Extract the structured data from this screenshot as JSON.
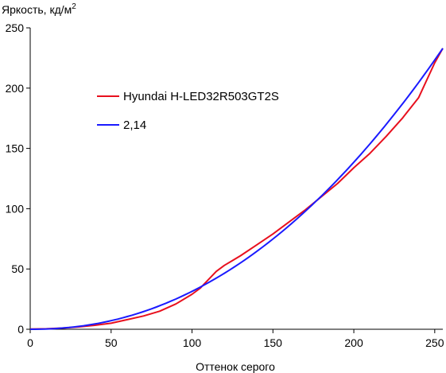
{
  "chart_data": {
    "type": "line",
    "ylabel": "Яркость, кд/м",
    "ylabel_sup": "2",
    "xlabel": "Оттенок серого",
    "xlim": [
      0,
      255
    ],
    "ylim": [
      0,
      250
    ],
    "xticks": [
      0,
      50,
      100,
      150,
      200,
      250
    ],
    "yticks": [
      0,
      50,
      100,
      150,
      200,
      250
    ],
    "grid": false,
    "legend_position": "upper-left-inside",
    "series": [
      {
        "name": "Hyundai H-LED32R503GT2S",
        "color": "#e8101e",
        "x": [
          0,
          10,
          20,
          30,
          40,
          50,
          60,
          70,
          80,
          90,
          100,
          105,
          110,
          115,
          120,
          125,
          130,
          140,
          150,
          160,
          170,
          180,
          190,
          200,
          210,
          220,
          230,
          240,
          250,
          255
        ],
        "y": [
          0.2,
          0.4,
          1.0,
          2.0,
          3.3,
          5.0,
          8.0,
          11.0,
          15.0,
          21.0,
          29.0,
          34.0,
          41.0,
          48.0,
          53.0,
          57.0,
          61.0,
          70.0,
          79.0,
          89.0,
          99.0,
          110.0,
          121.0,
          134.0,
          146.0,
          160.0,
          175.0,
          192.0,
          221.0,
          233.0
        ]
      },
      {
        "name": "2,14",
        "color": "#1a1aff",
        "x": [
          0,
          10,
          20,
          30,
          40,
          50,
          60,
          70,
          80,
          90,
          100,
          110,
          120,
          130,
          140,
          150,
          160,
          170,
          180,
          190,
          200,
          210,
          220,
          230,
          240,
          250,
          255
        ],
        "y": [
          0.0,
          0.3,
          1.2,
          2.9,
          5.2,
          8.3,
          12.2,
          16.8,
          22.3,
          28.7,
          35.7,
          43.5,
          52.2,
          61.7,
          72.0,
          83.2,
          95.2,
          108.1,
          121.8,
          136.4,
          151.8,
          168.1,
          185.2,
          203.1,
          221.8,
          241.3,
          233.0
        ]
      }
    ]
  }
}
